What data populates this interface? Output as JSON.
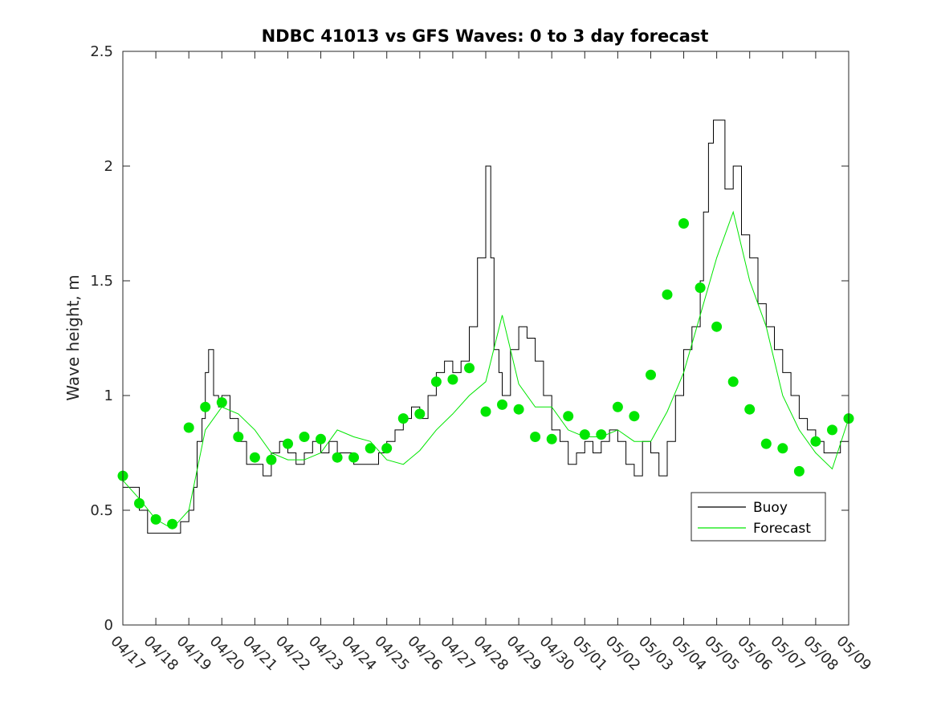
{
  "chart_data": {
    "type": "line",
    "title": "NDBC 41013 vs GFS Waves: 0 to 3 day forecast",
    "xlabel": "",
    "ylabel": "Wave height, m",
    "ylim": [
      0,
      2.5
    ],
    "yticks": [
      "0",
      "0.5",
      "1",
      "1.5",
      "2",
      "2.5"
    ],
    "x_tick_labels": [
      "04/17",
      "04/18",
      "04/19",
      "04/20",
      "04/21",
      "04/22",
      "04/23",
      "04/24",
      "04/25",
      "04/26",
      "04/27",
      "04/28",
      "04/29",
      "04/30",
      "05/01",
      "05/02",
      "05/03",
      "05/04",
      "05/05",
      "05/06",
      "05/07",
      "05/08",
      "05/09"
    ],
    "grid": false,
    "legend": {
      "placement": "bottom-right",
      "entries": [
        {
          "name": "Buoy",
          "color": "#000000"
        },
        {
          "name": "Forecast",
          "color": "#00e600"
        }
      ]
    },
    "colors": {
      "buoy": "#000000",
      "forecast": "#00e600",
      "marker": "#00e600"
    },
    "series": [
      {
        "name": "Buoy",
        "x": [
          0,
          0.25,
          0.5,
          0.75,
          1,
          1.25,
          1.5,
          1.75,
          2,
          2.15,
          2.25,
          2.4,
          2.5,
          2.6,
          2.75,
          2.9,
          3,
          3.25,
          3.5,
          3.75,
          4,
          4.25,
          4.5,
          4.75,
          5,
          5.25,
          5.5,
          5.75,
          6,
          6.25,
          6.5,
          6.75,
          7,
          7.25,
          7.5,
          7.75,
          8,
          8.25,
          8.5,
          8.75,
          9,
          9.25,
          9.5,
          9.75,
          10,
          10.25,
          10.5,
          10.75,
          11,
          11.15,
          11.25,
          11.4,
          11.5,
          11.75,
          12,
          12.25,
          12.5,
          12.75,
          13,
          13.25,
          13.5,
          13.75,
          14,
          14.25,
          14.5,
          14.75,
          15,
          15.25,
          15.5,
          15.75,
          16,
          16.25,
          16.5,
          16.75,
          17,
          17.25,
          17.5,
          17.6,
          17.75,
          17.9,
          18,
          18.25,
          18.5,
          18.75,
          19,
          19.25,
          19.5,
          19.75,
          20,
          20.25,
          20.5,
          20.75,
          21,
          21.25,
          21.5,
          21.75,
          22
        ],
        "y": [
          0.6,
          0.6,
          0.5,
          0.4,
          0.4,
          0.4,
          0.4,
          0.45,
          0.5,
          0.6,
          0.8,
          0.9,
          1.1,
          1.2,
          1.0,
          0.95,
          1.0,
          0.9,
          0.8,
          0.7,
          0.7,
          0.65,
          0.75,
          0.8,
          0.75,
          0.7,
          0.75,
          0.8,
          0.75,
          0.8,
          0.75,
          0.75,
          0.7,
          0.7,
          0.7,
          0.75,
          0.8,
          0.85,
          0.9,
          0.95,
          0.9,
          1.0,
          1.1,
          1.15,
          1.1,
          1.15,
          1.3,
          1.6,
          2.0,
          1.6,
          1.2,
          1.1,
          1.0,
          1.2,
          1.3,
          1.25,
          1.15,
          1.0,
          0.85,
          0.8,
          0.7,
          0.75,
          0.8,
          0.75,
          0.8,
          0.85,
          0.8,
          0.7,
          0.65,
          0.8,
          0.75,
          0.65,
          0.8,
          1.0,
          1.2,
          1.3,
          1.5,
          1.8,
          2.1,
          2.2,
          2.2,
          1.9,
          2.0,
          1.7,
          1.6,
          1.4,
          1.3,
          1.2,
          1.1,
          1.0,
          0.9,
          0.85,
          0.8,
          0.75,
          0.75,
          0.8,
          0.7
        ]
      },
      {
        "name": "Forecast",
        "x": [
          0,
          0.5,
          1,
          1.5,
          2,
          2.5,
          3,
          3.5,
          4,
          4.5,
          5,
          5.5,
          6,
          6.5,
          7,
          7.5,
          8,
          8.5,
          9,
          9.5,
          10,
          10.5,
          11,
          11.5,
          12,
          12.5,
          13,
          13.5,
          14,
          14.5,
          15,
          15.5,
          16,
          16.5,
          17,
          17.5,
          18,
          18.5,
          19,
          19.5,
          20,
          20.5,
          21,
          21.5,
          22
        ],
        "y": [
          0.63,
          0.55,
          0.46,
          0.42,
          0.5,
          0.85,
          0.95,
          0.92,
          0.85,
          0.75,
          0.72,
          0.72,
          0.75,
          0.85,
          0.82,
          0.8,
          0.72,
          0.7,
          0.76,
          0.85,
          0.92,
          1.0,
          1.06,
          1.35,
          1.05,
          0.95,
          0.95,
          0.85,
          0.82,
          0.82,
          0.85,
          0.8,
          0.8,
          0.93,
          1.1,
          1.35,
          1.6,
          1.8,
          1.5,
          1.3,
          1.0,
          0.85,
          0.75,
          0.68,
          0.9
        ]
      },
      {
        "name": "Forecast markers",
        "x": [
          0,
          0.5,
          1,
          1.5,
          2,
          2.5,
          3,
          3.5,
          4,
          4.5,
          5,
          5.5,
          6,
          6.5,
          7,
          7.5,
          8,
          8.5,
          9,
          9.5,
          10,
          10.5,
          11,
          11.5,
          12,
          12.5,
          13,
          13.5,
          14,
          14.5,
          15,
          15.5,
          16,
          16.5,
          17,
          17.5,
          18,
          18.5,
          19,
          19.5,
          20,
          20.5,
          21,
          21.5,
          22
        ],
        "y": [
          0.65,
          0.53,
          0.46,
          0.44,
          0.86,
          0.95,
          0.97,
          0.82,
          0.73,
          0.72,
          0.79,
          0.82,
          0.81,
          0.73,
          0.73,
          0.77,
          0.77,
          0.9,
          0.92,
          1.06,
          1.07,
          1.12,
          0.93,
          0.96,
          0.94,
          0.82,
          0.81,
          0.91,
          0.83,
          0.83,
          0.95,
          0.91,
          1.09,
          1.44,
          1.75,
          1.47,
          1.3,
          1.06,
          0.94,
          0.79,
          0.77,
          0.67,
          0.8,
          0.85,
          0.9
        ]
      }
    ]
  }
}
